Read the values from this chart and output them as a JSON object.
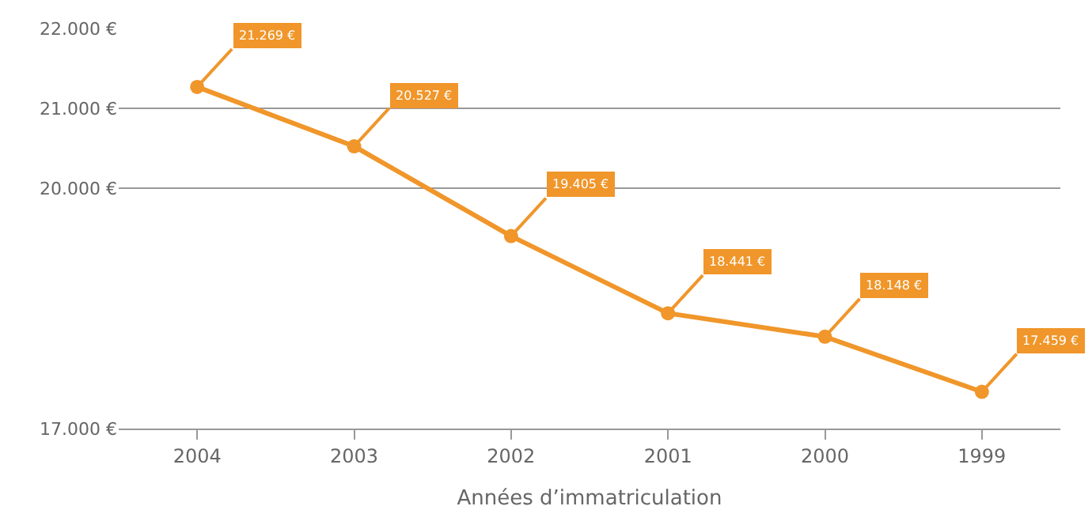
{
  "chart_data": {
    "type": "line",
    "xlabel": "Années d’immatriculation",
    "categories": [
      "2004",
      "2003",
      "2002",
      "2001",
      "2000",
      "1999"
    ],
    "values": [
      21269,
      20527,
      19405,
      18441,
      18148,
      17459
    ],
    "value_labels": [
      "21.269 €",
      "20.527 €",
      "19.405 €",
      "18.441 €",
      "18.148 €",
      "17.459 €"
    ],
    "color": "#f0962a",
    "marker": "circle",
    "line_style": "solid",
    "grid": "y",
    "ylim": [
      17000,
      22000
    ],
    "yticks": [
      {
        "value": 17000,
        "label": "17.000 €"
      },
      {
        "value": 20000,
        "label": "20.000 €"
      },
      {
        "value": 21000,
        "label": "21.000 €"
      },
      {
        "value": 22000,
        "label": "22.000 €"
      }
    ]
  }
}
